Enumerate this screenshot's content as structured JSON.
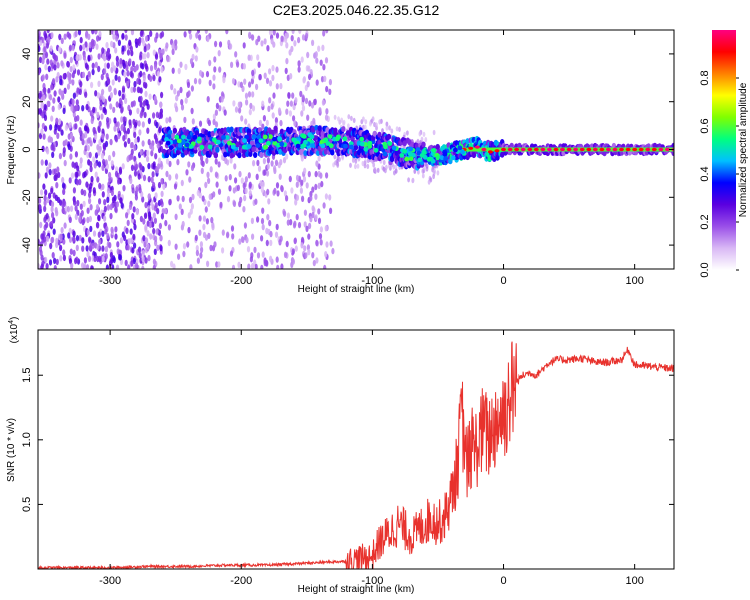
{
  "chart_data": [
    {
      "type": "heatmap",
      "title": "C2E3.2025.046.22.35.G12",
      "xlabel": "Height of straight line (km)",
      "ylabel": "Frequency (Hz)",
      "xlim": [
        -355,
        130
      ],
      "ylim": [
        -50,
        50
      ],
      "x_ticks": [
        -300,
        -200,
        -100,
        0,
        100
      ],
      "x_tick_labels": [
        "-300",
        "-200",
        "-100",
        "0",
        "100"
      ],
      "y_ticks": [
        -40,
        -20,
        0,
        20,
        40
      ],
      "y_tick_labels": [
        "-40",
        "-20",
        "0",
        "20",
        "40"
      ],
      "colorbar": {
        "label": "Normalized spectral amplitude",
        "range": [
          0,
          1
        ],
        "ticks": [
          0.0,
          0.2,
          0.4,
          0.6,
          0.8
        ],
        "tick_labels": [
          "0.0",
          "0.2",
          "0.4",
          "0.6",
          "0.8"
        ],
        "colormap": [
          "#ffffff",
          "#d9b8f5",
          "#9a4fe8",
          "#5a00e0",
          "#0000ff",
          "#00c0ff",
          "#00ff80",
          "#80ff00",
          "#ffff00",
          "#ff8000",
          "#ff0000",
          "#ff0080"
        ]
      },
      "signal_ridge": [
        {
          "x": -260,
          "y": 3
        },
        {
          "x": -200,
          "y": 3
        },
        {
          "x": -130,
          "y": 4
        },
        {
          "x": -100,
          "y": 2
        },
        {
          "x": -80,
          "y": -1
        },
        {
          "x": -60,
          "y": -3
        },
        {
          "x": -45,
          "y": -2
        },
        {
          "x": -30,
          "y": 0
        },
        {
          "x": -20,
          "y": 1
        },
        {
          "x": -10,
          "y": -1
        },
        {
          "x": 0,
          "y": 0
        },
        {
          "x": 130,
          "y": 0
        }
      ],
      "noise_region_x": [
        -355,
        -130
      ],
      "grid": false
    },
    {
      "type": "line",
      "xlabel": "Height of straight line (km)",
      "ylabel": "SNR (10 * v/v)",
      "y_multiplier": "(x10",
      "y_multiplier_exp": "4",
      "xlim": [
        -355,
        130
      ],
      "ylim": [
        0,
        1.85
      ],
      "x_ticks": [
        -300,
        -200,
        -100,
        0,
        100
      ],
      "x_tick_labels": [
        "-300",
        "-200",
        "-100",
        "0",
        "100"
      ],
      "y_ticks": [
        0.5,
        1.0,
        1.5
      ],
      "y_tick_labels": [
        "0.5",
        "1.0",
        "1.5"
      ],
      "line_color": "#e8322d",
      "series": [
        {
          "x": [
            -355,
            -330,
            -300,
            -270,
            -240,
            -210,
            -180,
            -160,
            -140,
            -120,
            -110,
            -100,
            -95,
            -90,
            -85,
            -80,
            -75,
            -70,
            -65,
            -60,
            -55,
            -50,
            -45,
            -40,
            -35,
            -32,
            -30,
            -28,
            -25,
            -20,
            -15,
            -12,
            -10,
            -5,
            0,
            5,
            10,
            15,
            20,
            25,
            30,
            35,
            40,
            50,
            60,
            70,
            80,
            90,
            95,
            100,
            110,
            120,
            130
          ],
          "values": [
            0.01,
            0.01,
            0.01,
            0.02,
            0.02,
            0.03,
            0.03,
            0.04,
            0.05,
            0.06,
            0.08,
            0.1,
            0.2,
            0.25,
            0.3,
            0.35,
            0.3,
            0.25,
            0.3,
            0.35,
            0.4,
            0.35,
            0.4,
            0.55,
            0.8,
            1.2,
            1.0,
            0.8,
            0.9,
            0.95,
            1.1,
            1.0,
            1.05,
            1.15,
            1.2,
            1.35,
            1.45,
            1.5,
            1.52,
            1.5,
            1.55,
            1.6,
            1.62,
            1.62,
            1.63,
            1.6,
            1.6,
            1.62,
            1.7,
            1.58,
            1.57,
            1.56,
            1.55
          ]
        }
      ],
      "grid": false
    }
  ]
}
